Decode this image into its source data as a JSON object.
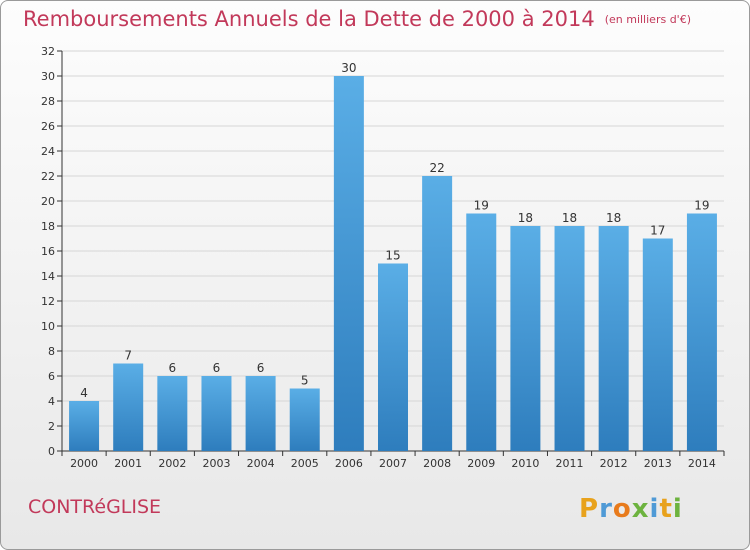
{
  "title": "Remboursements Annuels de la Dette de 2000 à 2014",
  "unit_note": "(en milliers d'€)",
  "commune": "CONTRéGLISE",
  "brand": "Proxiti",
  "colors": {
    "title": "#c2395a",
    "bar_top": "#5aaee6",
    "bar_bottom": "#2e7dbd",
    "grid": "#d6d6d6",
    "axis": "#333333"
  },
  "chart_data": {
    "type": "bar",
    "categories": [
      "2000",
      "2001",
      "2002",
      "2003",
      "2004",
      "2005",
      "2006",
      "2007",
      "2008",
      "2009",
      "2010",
      "2011",
      "2012",
      "2013",
      "2014"
    ],
    "values": [
      4,
      7,
      6,
      6,
      6,
      5,
      30,
      15,
      22,
      19,
      18,
      18,
      18,
      17,
      19
    ],
    "title": "Remboursements Annuels de la Dette de 2000 à 2014",
    "xlabel": "",
    "ylabel": "",
    "ylim": [
      0,
      32
    ],
    "yticks": [
      0,
      2,
      4,
      6,
      8,
      10,
      12,
      14,
      16,
      18,
      20,
      22,
      24,
      26,
      28,
      30,
      32
    ],
    "grid": true,
    "data_labels": true
  }
}
